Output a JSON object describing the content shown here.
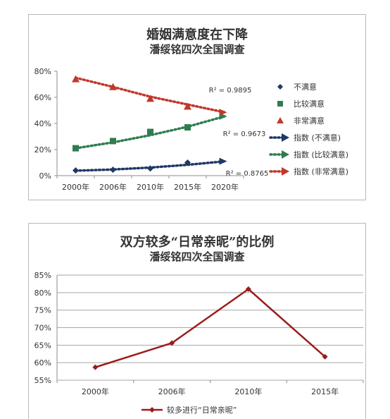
{
  "chart_data": [
    {
      "type": "scatter",
      "title": "婚姻满意度在下降",
      "subtitle": "潘绥铭四次全国调查",
      "categories": [
        "2000年",
        "2006年",
        "2010年",
        "2015年",
        "2020年"
      ],
      "ylim": [
        0,
        80
      ],
      "yticks": [
        "0%",
        "20%",
        "40%",
        "60%",
        "80%"
      ],
      "grid": false,
      "legend_position": "right",
      "series": [
        {
          "name": "不满意",
          "marker": "diamond",
          "color": "#1f3864",
          "values": [
            4,
            4.5,
            5.5,
            10,
            null
          ]
        },
        {
          "name": "比较满意",
          "marker": "square",
          "color": "#2e7d4f",
          "values": [
            21,
            26.5,
            33.5,
            37,
            null
          ]
        },
        {
          "name": "非常满意",
          "marker": "triangle",
          "color": "#c0392b",
          "values": [
            74,
            68,
            59,
            53,
            null
          ]
        }
      ],
      "trendlines": [
        {
          "name": "指数 (不满意)",
          "color": "#1f3864",
          "values": [
            3.8,
            4.7,
            6.2,
            8.3,
            11
          ],
          "r2": "R² = 0.8765"
        },
        {
          "name": "指数 (比较满意)",
          "color": "#2e7d4f",
          "values": [
            21,
            25.5,
            31,
            37.5,
            45.5
          ],
          "r2": "R² = 0.9673"
        },
        {
          "name": "指数 (非常满意)",
          "color": "#c0392b",
          "values": [
            75,
            68,
            60.5,
            54.5,
            48.5
          ],
          "r2": "R² = 0.9895"
        }
      ]
    },
    {
      "type": "line",
      "title": "双方较多“日常亲昵”的比例",
      "subtitle": "潘绥铭四次全国调查",
      "categories": [
        "2000年",
        "2006年",
        "2010年",
        "2015年"
      ],
      "ylim": [
        55,
        85
      ],
      "yticks": [
        "55%",
        "60%",
        "65%",
        "70%",
        "75%",
        "80%",
        "85%"
      ],
      "grid": true,
      "legend_position": "bottom",
      "series": [
        {
          "name": "较多进行“日常亲昵”",
          "color": "#9b1c1c",
          "values": [
            58.7,
            65.6,
            81,
            61.7
          ]
        }
      ]
    }
  ]
}
